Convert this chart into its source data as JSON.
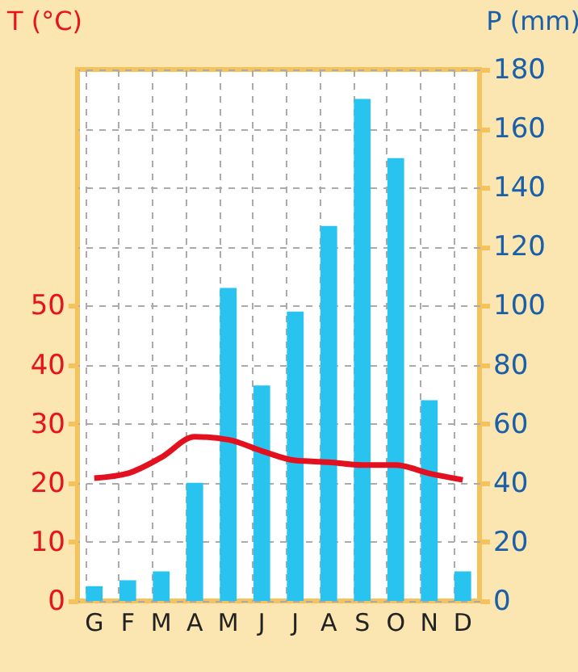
{
  "chart_data": {
    "type": "bar",
    "categories": [
      "G",
      "F",
      "M",
      "A",
      "M",
      "J",
      "J",
      "A",
      "S",
      "O",
      "N",
      "D"
    ],
    "ylabel": "T (°C)",
    "y2label": "P (mm)",
    "ylim": [
      0,
      90
    ],
    "yticks": [
      0,
      10,
      20,
      30,
      40,
      50
    ],
    "y2lim": [
      0,
      180
    ],
    "y2ticks": [
      0,
      20,
      40,
      60,
      80,
      100,
      120,
      140,
      160,
      180
    ],
    "grid": true,
    "series": [
      {
        "axis": "y2",
        "color": "#29c3f0",
        "values": [
          5,
          7,
          10,
          40,
          106,
          73,
          98,
          127,
          170,
          150,
          68,
          10
        ]
      },
      {
        "type": "line",
        "axis": "y",
        "line_style": "solid",
        "color": "#e3101f",
        "values": [
          20.8,
          21.6,
          24.3,
          27.8,
          27.3,
          25.4,
          23.8,
          23.5,
          23,
          23,
          21.6,
          20.5
        ]
      }
    ]
  }
}
